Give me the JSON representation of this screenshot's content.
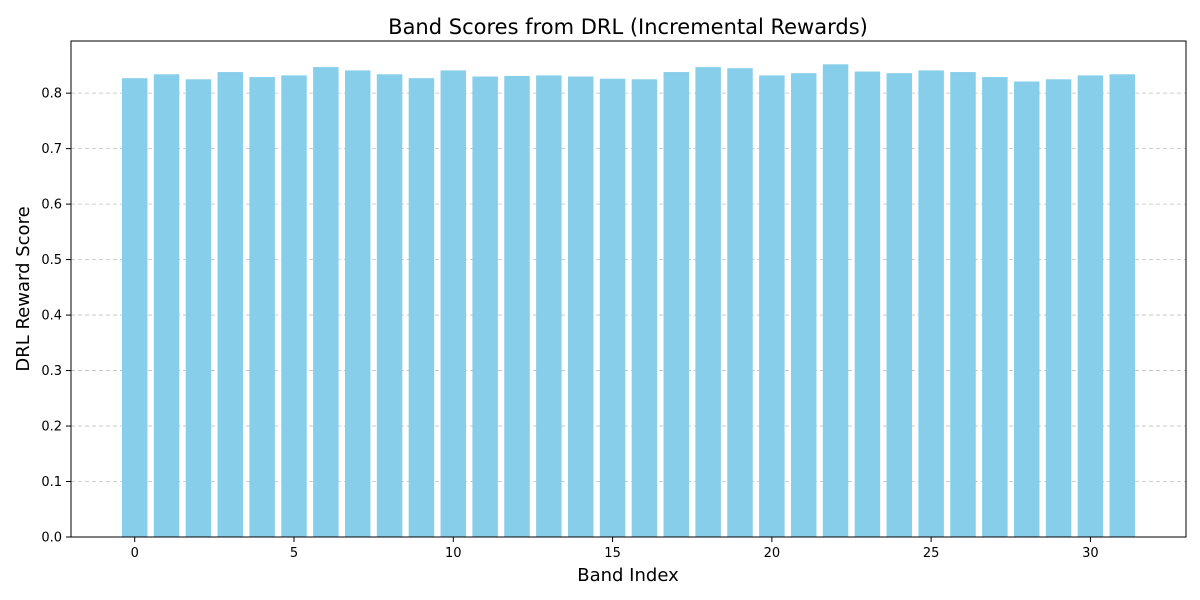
{
  "chart_data": {
    "type": "bar",
    "title": "Band Scores from DRL (Incremental Rewards)",
    "xlabel": "Band Index",
    "ylabel": "DRL Reward Score",
    "x": [
      0,
      1,
      2,
      3,
      4,
      5,
      6,
      7,
      8,
      9,
      10,
      11,
      12,
      13,
      14,
      15,
      16,
      17,
      18,
      19,
      20,
      21,
      22,
      23,
      24,
      25,
      26,
      27,
      28,
      29,
      30,
      31
    ],
    "values": [
      0.827,
      0.834,
      0.825,
      0.838,
      0.829,
      0.832,
      0.847,
      0.841,
      0.834,
      0.827,
      0.841,
      0.83,
      0.831,
      0.832,
      0.83,
      0.826,
      0.825,
      0.838,
      0.847,
      0.845,
      0.832,
      0.836,
      0.852,
      0.839,
      0.836,
      0.841,
      0.838,
      0.829,
      0.821,
      0.825,
      0.832,
      0.834
    ],
    "xlim": [
      -2,
      33
    ],
    "ylim": [
      0,
      0.894
    ],
    "xticks": [
      0,
      5,
      10,
      15,
      20,
      25,
      30
    ],
    "yticks": [
      "0.0",
      "0.1",
      "0.2",
      "0.3",
      "0.4",
      "0.5",
      "0.6",
      "0.7",
      "0.8"
    ],
    "grid": "y-dashed",
    "bar_color": "#87CEEB",
    "grid_color": "#c0c0c0"
  }
}
